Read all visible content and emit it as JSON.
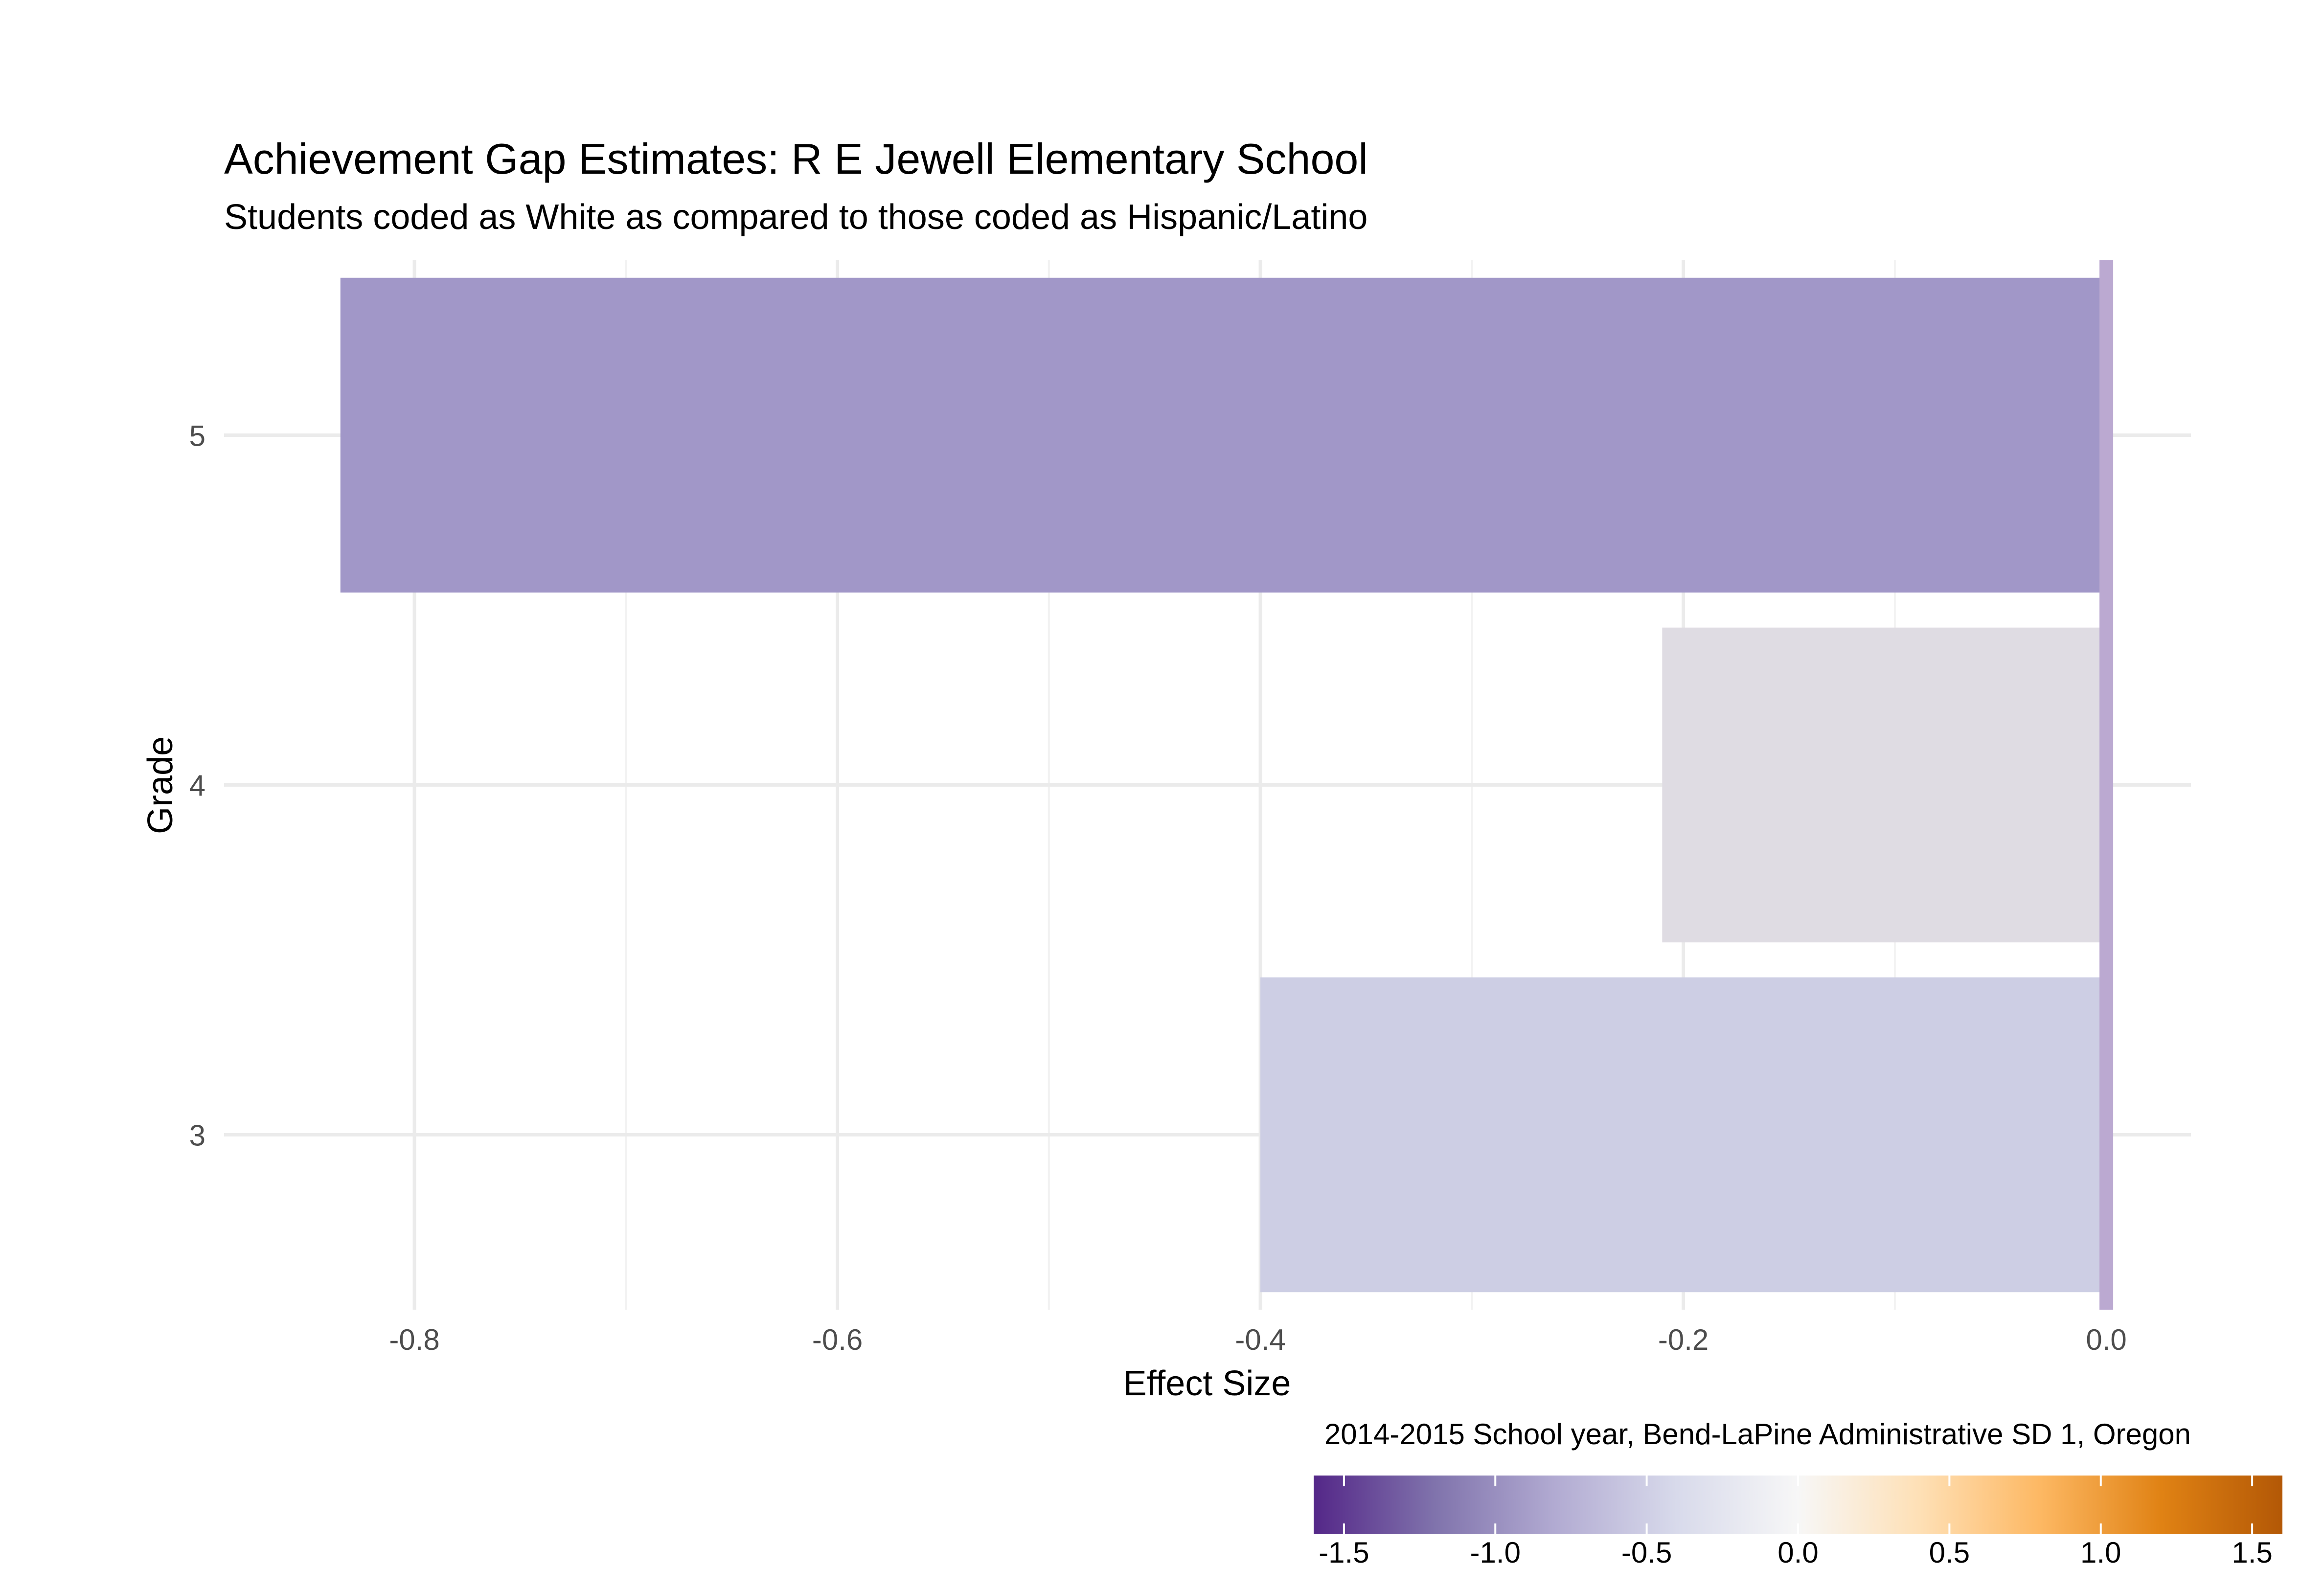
{
  "chart_data": {
    "type": "bar",
    "orientation": "horizontal",
    "title": "Achievement Gap Estimates: R E Jewell Elementary School",
    "subtitle": "Students coded as White as compared to those coded as Hispanic/Latino",
    "xlabel": "Effect Size",
    "ylabel": "Grade",
    "caption": "2014-2015 School year, Bend-LaPine Administrative SD 1, Oregon",
    "categories": [
      "3",
      "4",
      "5"
    ],
    "values": [
      -0.4,
      -0.21,
      -0.835
    ],
    "bar_colors": [
      "#cdcee4",
      "#dfdce3",
      "#a197c8"
    ],
    "xlim": [
      -0.89,
      0.04
    ],
    "xticks": [
      -0.8,
      -0.6,
      -0.4,
      -0.2,
      0.0
    ],
    "xtick_labels": [
      "-0.8",
      "-0.6",
      "-0.4",
      "-0.2",
      "0.0"
    ],
    "reference_line": {
      "x": 0.0,
      "color": "#bba9d1"
    },
    "grid": true,
    "legend": {
      "type": "colorbar",
      "placement": "bottom-right",
      "range": [
        -1.6,
        1.6
      ],
      "ticks": [
        -1.5,
        -1.0,
        -0.5,
        0.0,
        0.5,
        1.0,
        1.5
      ],
      "tick_labels": [
        "-1.5",
        "-1.0",
        "-0.5",
        "0.0",
        "0.5",
        "1.0",
        "1.5"
      ],
      "colors": [
        "#542788",
        "#8073ac",
        "#b2abd2",
        "#d8daeb",
        "#f7f7f7",
        "#fee0b6",
        "#fdb863",
        "#e08214",
        "#b35806"
      ]
    }
  }
}
